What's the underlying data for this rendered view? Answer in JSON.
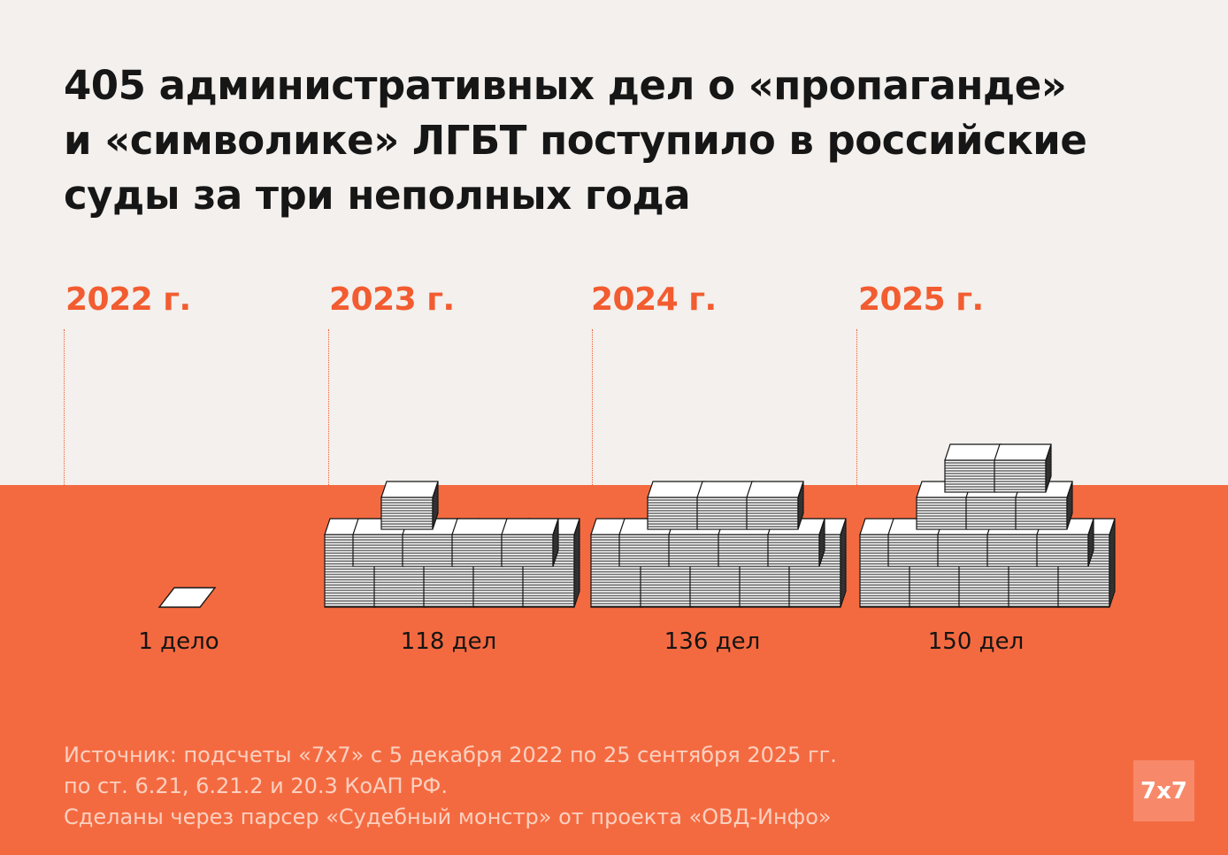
{
  "title_lines": [
    "405 административных дел о «пропаганде»",
    "и «символике» ЛГБТ поступило в российские",
    "суды за три неполных года"
  ],
  "chart_data": {
    "type": "bar",
    "categories": [
      "2022 г.",
      "2023 г.",
      "2024 г.",
      "2025 г."
    ],
    "values": [
      1,
      118,
      136,
      150
    ],
    "value_labels": [
      "1 дело",
      "118 дел",
      "136 дел",
      "150 дел"
    ],
    "total": 405,
    "colors": {
      "accent": "#f25c30",
      "band": "#f46a40",
      "paper": "#ffffff",
      "ink": "#161616"
    }
  },
  "source_lines": [
    "Источник: подсчеты «7x7» с 5 декабря 2022 по 25 сентября 2025 гг.",
    "по ст. 6.21, 6.21.2 и 20.3 КоАП РФ.",
    "Сделаны через парсер «Судебный монстр» от проекта «ОВД-Инфо»"
  ],
  "logo_text": "7x7"
}
